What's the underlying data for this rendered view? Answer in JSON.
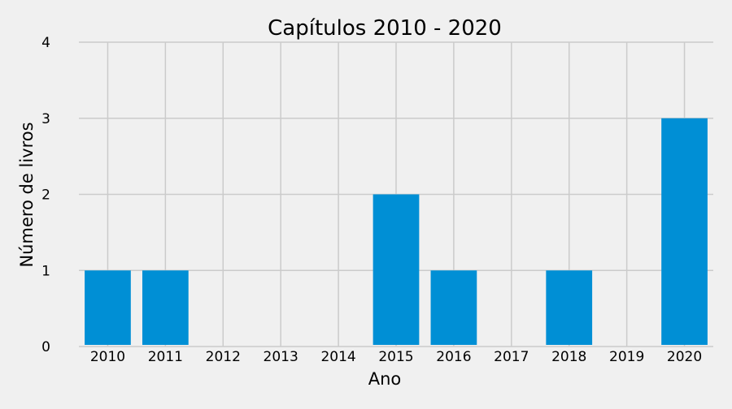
{
  "chart_data": {
    "type": "bar",
    "title": "Capítulos  2010 - 2020",
    "xlabel": "Ano",
    "ylabel": "Número de livros",
    "categories": [
      "2010",
      "2011",
      "2012",
      "2013",
      "2014",
      "2015",
      "2016",
      "2017",
      "2018",
      "2019",
      "2020"
    ],
    "values": [
      1,
      1,
      0,
      0,
      0,
      2,
      1,
      0,
      1,
      0,
      3
    ],
    "ylim": [
      0,
      4
    ],
    "yticks": [
      "0",
      "1",
      "2",
      "3",
      "4"
    ],
    "grid": true,
    "colors": {
      "background": "#f0f0f0",
      "bar": "#008fd5",
      "grid": "#cbcbcb",
      "text": "#000000"
    }
  }
}
